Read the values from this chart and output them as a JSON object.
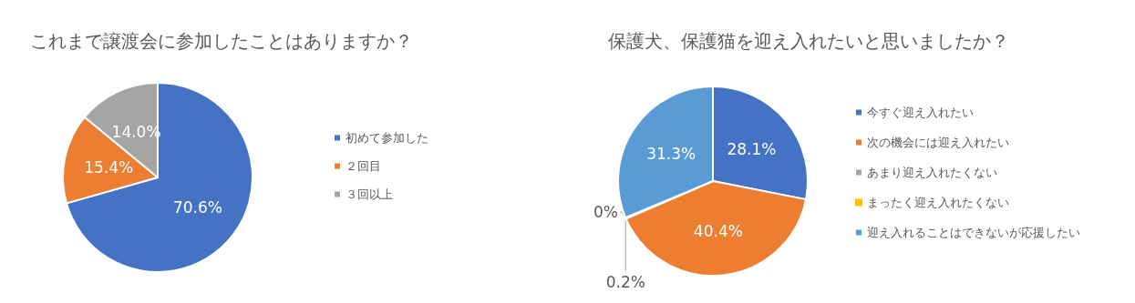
{
  "chart_data": [
    {
      "type": "pie",
      "title": "これまで譲渡会に参加したことはありますか？",
      "categories": [
        "初めて参加した",
        "２回目",
        "３回以上"
      ],
      "values": [
        70.6,
        15.4,
        14.0
      ],
      "colors": [
        "#4472c4",
        "#ed7d31",
        "#a5a5a5"
      ],
      "value_labels": [
        "70.6%",
        "15.4%",
        "14.0%"
      ],
      "legend": "right"
    },
    {
      "type": "pie",
      "title": "保護犬、保護猫を迎え入れたいと思いましたか？",
      "categories": [
        "今すぐ迎え入れたい",
        "次の機会には迎え入れたい",
        "あまり迎え入れたくない",
        "まったく迎え入れたくない",
        "迎え入れることはできないが応援したい"
      ],
      "values": [
        28.1,
        40.4,
        0.2,
        0,
        31.3
      ],
      "colors": [
        "#4472c4",
        "#ed7d31",
        "#a5a5a5",
        "#ffc000",
        "#5b9bd5"
      ],
      "value_labels": [
        "28.1%",
        "40.4%",
        "0.2%",
        "0%",
        "31.3%"
      ],
      "legend": "right"
    }
  ]
}
